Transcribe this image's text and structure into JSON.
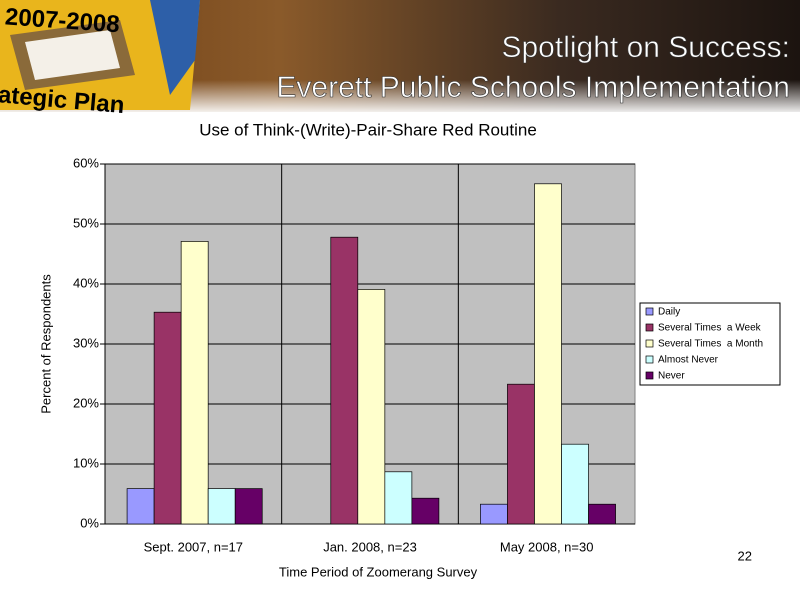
{
  "slide": {
    "banner_top": "2007-2008",
    "banner_bottom": "ategic Plan",
    "heading": [
      "Spotlight on Success:",
      "Everett Public Schools Implementation"
    ],
    "page_number": "22"
  },
  "chart_data": {
    "type": "bar",
    "title": "Use of Think-(Write)-Pair-Share Red Routine",
    "x_label": "Time Period of Zoomerang Survey",
    "y_label": "Percent of Respondents",
    "categories": [
      "Sept. 2007, n=17",
      "Jan. 2008, n=23",
      "May 2008, n=30"
    ],
    "series": [
      {
        "name": "Daily",
        "color": "#9999ff",
        "values": [
          5.9,
          0,
          3.3
        ]
      },
      {
        "name": "Several Times  a Week",
        "color": "#993366",
        "values": [
          35.3,
          47.8,
          23.3
        ]
      },
      {
        "name": "Several Times  a Month",
        "color": "#ffffcc",
        "values": [
          47.1,
          39.1,
          56.7
        ]
      },
      {
        "name": "Almost Never",
        "color": "#ccffff",
        "values": [
          5.9,
          8.7,
          13.3
        ]
      },
      {
        "name": "Never",
        "color": "#660066",
        "values": [
          5.9,
          4.3,
          3.3
        ]
      }
    ],
    "ylim": [
      0,
      60
    ],
    "yticks": [
      {
        "value": 0,
        "label": "0%"
      },
      {
        "value": 10,
        "label": "10%"
      },
      {
        "value": 20,
        "label": "20%"
      },
      {
        "value": 30,
        "label": "30%"
      },
      {
        "value": 40,
        "label": "40%"
      },
      {
        "value": 50,
        "label": "50%"
      },
      {
        "value": 60,
        "label": "60%"
      }
    ],
    "grid": true,
    "legend": "right",
    "plot_background": "#c0c0c0"
  }
}
